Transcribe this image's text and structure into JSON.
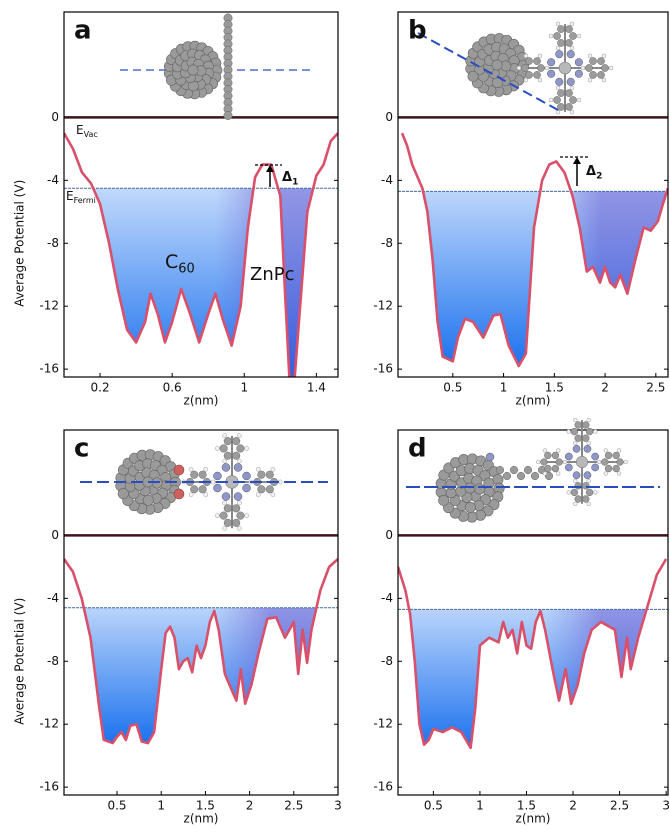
{
  "chart_data": [
    {
      "type": "line",
      "label": "a",
      "ylabel": "Average Potential (V)",
      "xlabel": "z(nm)",
      "xlim": [
        0,
        1.52
      ],
      "xticks": [
        0.2,
        0.6,
        1,
        1.4
      ],
      "ylim": [
        -16.5,
        6.7
      ],
      "yticks": [
        0,
        -4,
        -8,
        -12,
        -16
      ],
      "color": "#d9506b",
      "x": [
        0,
        0.05,
        0.1,
        0.15,
        0.2,
        0.25,
        0.3,
        0.35,
        0.4,
        0.45,
        0.48,
        0.52,
        0.56,
        0.6,
        0.65,
        0.7,
        0.75,
        0.8,
        0.84,
        0.88,
        0.93,
        0.98,
        1.02,
        1.06,
        1.1,
        1.15,
        1.2,
        1.23,
        1.25,
        1.28,
        1.31,
        1.35,
        1.4,
        1.44,
        1.48,
        1.52
      ],
      "values": [
        -1,
        -2,
        -3.5,
        -4.2,
        -5.5,
        -8,
        -11,
        -13.5,
        -14.3,
        -13,
        -11.2,
        -12.5,
        -14.3,
        -13,
        -10.9,
        -12.5,
        -14.3,
        -12.5,
        -11.2,
        -12.8,
        -14.5,
        -12,
        -7,
        -3.8,
        -3,
        -3,
        -5,
        -12,
        -16.5,
        -16.5,
        -12,
        -6,
        -3.7,
        -3,
        -1.5,
        -1
      ],
      "hlines": [
        {
          "value": 0,
          "color": "#3a1518"
        },
        {
          "value": -4.5,
          "color": "#3a6aa8"
        }
      ],
      "annotations": [
        {
          "text": "E",
          "sub": "Vac"
        },
        {
          "text": "E",
          "sub": "Fermi"
        },
        {
          "text": "C",
          "sub": "60"
        },
        {
          "text": "ZnPc"
        },
        {
          "text": "Δ",
          "sub": "1"
        }
      ]
    },
    {
      "type": "line",
      "label": "b",
      "xlabel": "z(nm)",
      "xlim": [
        -0.04,
        2.62
      ],
      "xticks": [
        0.5,
        1,
        1.5,
        2,
        2.5
      ],
      "ylim": [
        -16.5,
        6.7
      ],
      "yticks": [
        0,
        -4,
        -8,
        -12,
        -16
      ],
      "color": "#d9506b",
      "x": [
        0,
        0.05,
        0.1,
        0.2,
        0.25,
        0.3,
        0.35,
        0.4,
        0.5,
        0.55,
        0.62,
        0.7,
        0.8,
        0.9,
        0.97,
        1.05,
        1.15,
        1.22,
        1.26,
        1.3,
        1.38,
        1.45,
        1.52,
        1.6,
        1.68,
        1.75,
        1.82,
        1.88,
        1.95,
        2.0,
        2.05,
        2.1,
        2.15,
        2.22,
        2.3,
        2.38,
        2.45,
        2.52,
        2.57,
        2.62
      ],
      "values": [
        -1,
        -1.8,
        -3,
        -4.5,
        -6,
        -9,
        -13,
        -15.2,
        -15.5,
        -14,
        -12.8,
        -13,
        -14,
        -12.6,
        -12.5,
        -14.5,
        -15.8,
        -15,
        -11,
        -7,
        -4,
        -3,
        -2.8,
        -3.5,
        -5,
        -7,
        -9.8,
        -9.5,
        -10.5,
        -9.5,
        -10.5,
        -10.8,
        -10,
        -11.2,
        -9,
        -7,
        -7.2,
        -6.6,
        -5.5,
        -4.5
      ],
      "hlines": [
        {
          "value": 0,
          "color": "#3a1518"
        },
        {
          "value": -4.7,
          "color": "#3a6aa8"
        }
      ],
      "annotations": [
        {
          "text": "Δ",
          "sub": "2"
        }
      ]
    },
    {
      "type": "line",
      "label": "c",
      "ylabel": "Average Potential (V)",
      "xlabel": "z(nm)",
      "xlim": [
        -0.1,
        3
      ],
      "xticks": [
        0.5,
        1,
        1.5,
        2,
        2.5,
        3
      ],
      "ylim": [
        -16.5,
        6.7
      ],
      "yticks": [
        0,
        -4,
        -8,
        -12,
        -16
      ],
      "color": "#d9506b",
      "x": [
        -0.1,
        0,
        0.1,
        0.2,
        0.3,
        0.35,
        0.45,
        0.5,
        0.55,
        0.6,
        0.65,
        0.72,
        0.78,
        0.85,
        0.92,
        1.0,
        1.05,
        1.1,
        1.15,
        1.2,
        1.25,
        1.3,
        1.35,
        1.4,
        1.45,
        1.5,
        1.55,
        1.6,
        1.65,
        1.72,
        1.78,
        1.85,
        1.9,
        1.95,
        2.02,
        2.1,
        2.2,
        2.3,
        2.4,
        2.5,
        2.55,
        2.6,
        2.65,
        2.7,
        2.8,
        2.9,
        3.0
      ],
      "values": [
        -1.5,
        -2.3,
        -4,
        -6.5,
        -11,
        -13,
        -13.2,
        -12.8,
        -12.5,
        -13,
        -12.1,
        -12,
        -13.1,
        -13.2,
        -12.5,
        -8.5,
        -6.2,
        -5.8,
        -6.5,
        -8.5,
        -8,
        -7.8,
        -8.7,
        -7,
        -7.8,
        -7,
        -5.5,
        -4.8,
        -6,
        -8.8,
        -9.6,
        -10.5,
        -8.5,
        -10.7,
        -9.5,
        -7.5,
        -5.3,
        -5.2,
        -6.5,
        -5.5,
        -8.8,
        -6,
        -8.1,
        -6,
        -3.5,
        -2,
        -1.5
      ],
      "hlines": [
        {
          "value": 0,
          "color": "#3a1518"
        },
        {
          "value": -4.6,
          "color": "#3a6aa8"
        }
      ],
      "annotations": []
    },
    {
      "type": "line",
      "label": "d",
      "xlabel": "z(nm)",
      "xlim": [
        0.12,
        3.02
      ],
      "xticks": [
        0.5,
        1,
        1.5,
        2,
        2.5,
        3
      ],
      "ylim": [
        -16.5,
        6.7
      ],
      "yticks": [
        0,
        -4,
        -8,
        -12,
        -16
      ],
      "color": "#d9506b",
      "x": [
        0.12,
        0.2,
        0.25,
        0.3,
        0.35,
        0.4,
        0.45,
        0.5,
        0.6,
        0.7,
        0.8,
        0.9,
        0.95,
        1.0,
        1.1,
        1.2,
        1.25,
        1.3,
        1.35,
        1.4,
        1.45,
        1.5,
        1.55,
        1.6,
        1.65,
        1.7,
        1.78,
        1.85,
        1.92,
        1.98,
        2.05,
        2.12,
        2.2,
        2.3,
        2.45,
        2.52,
        2.58,
        2.62,
        2.7,
        2.8,
        2.9,
        3.0
      ],
      "values": [
        -2,
        -3.5,
        -5,
        -8,
        -12,
        -13.3,
        -13,
        -12.3,
        -12.5,
        -12.2,
        -12.5,
        -13.5,
        -11,
        -7,
        -6.5,
        -6.8,
        -5.5,
        -6.5,
        -6,
        -7.5,
        -5.5,
        -7,
        -7.2,
        -5.5,
        -4.8,
        -6,
        -8.5,
        -10.5,
        -8.5,
        -10.7,
        -9.5,
        -7.5,
        -6,
        -5.5,
        -6,
        -9,
        -6.5,
        -8.5,
        -6.5,
        -4.5,
        -2.5,
        -1.5
      ],
      "hlines": [
        {
          "value": 0,
          "color": "#3a1518"
        },
        {
          "value": -4.7,
          "color": "#3a6aa8"
        }
      ],
      "annotations": []
    }
  ]
}
